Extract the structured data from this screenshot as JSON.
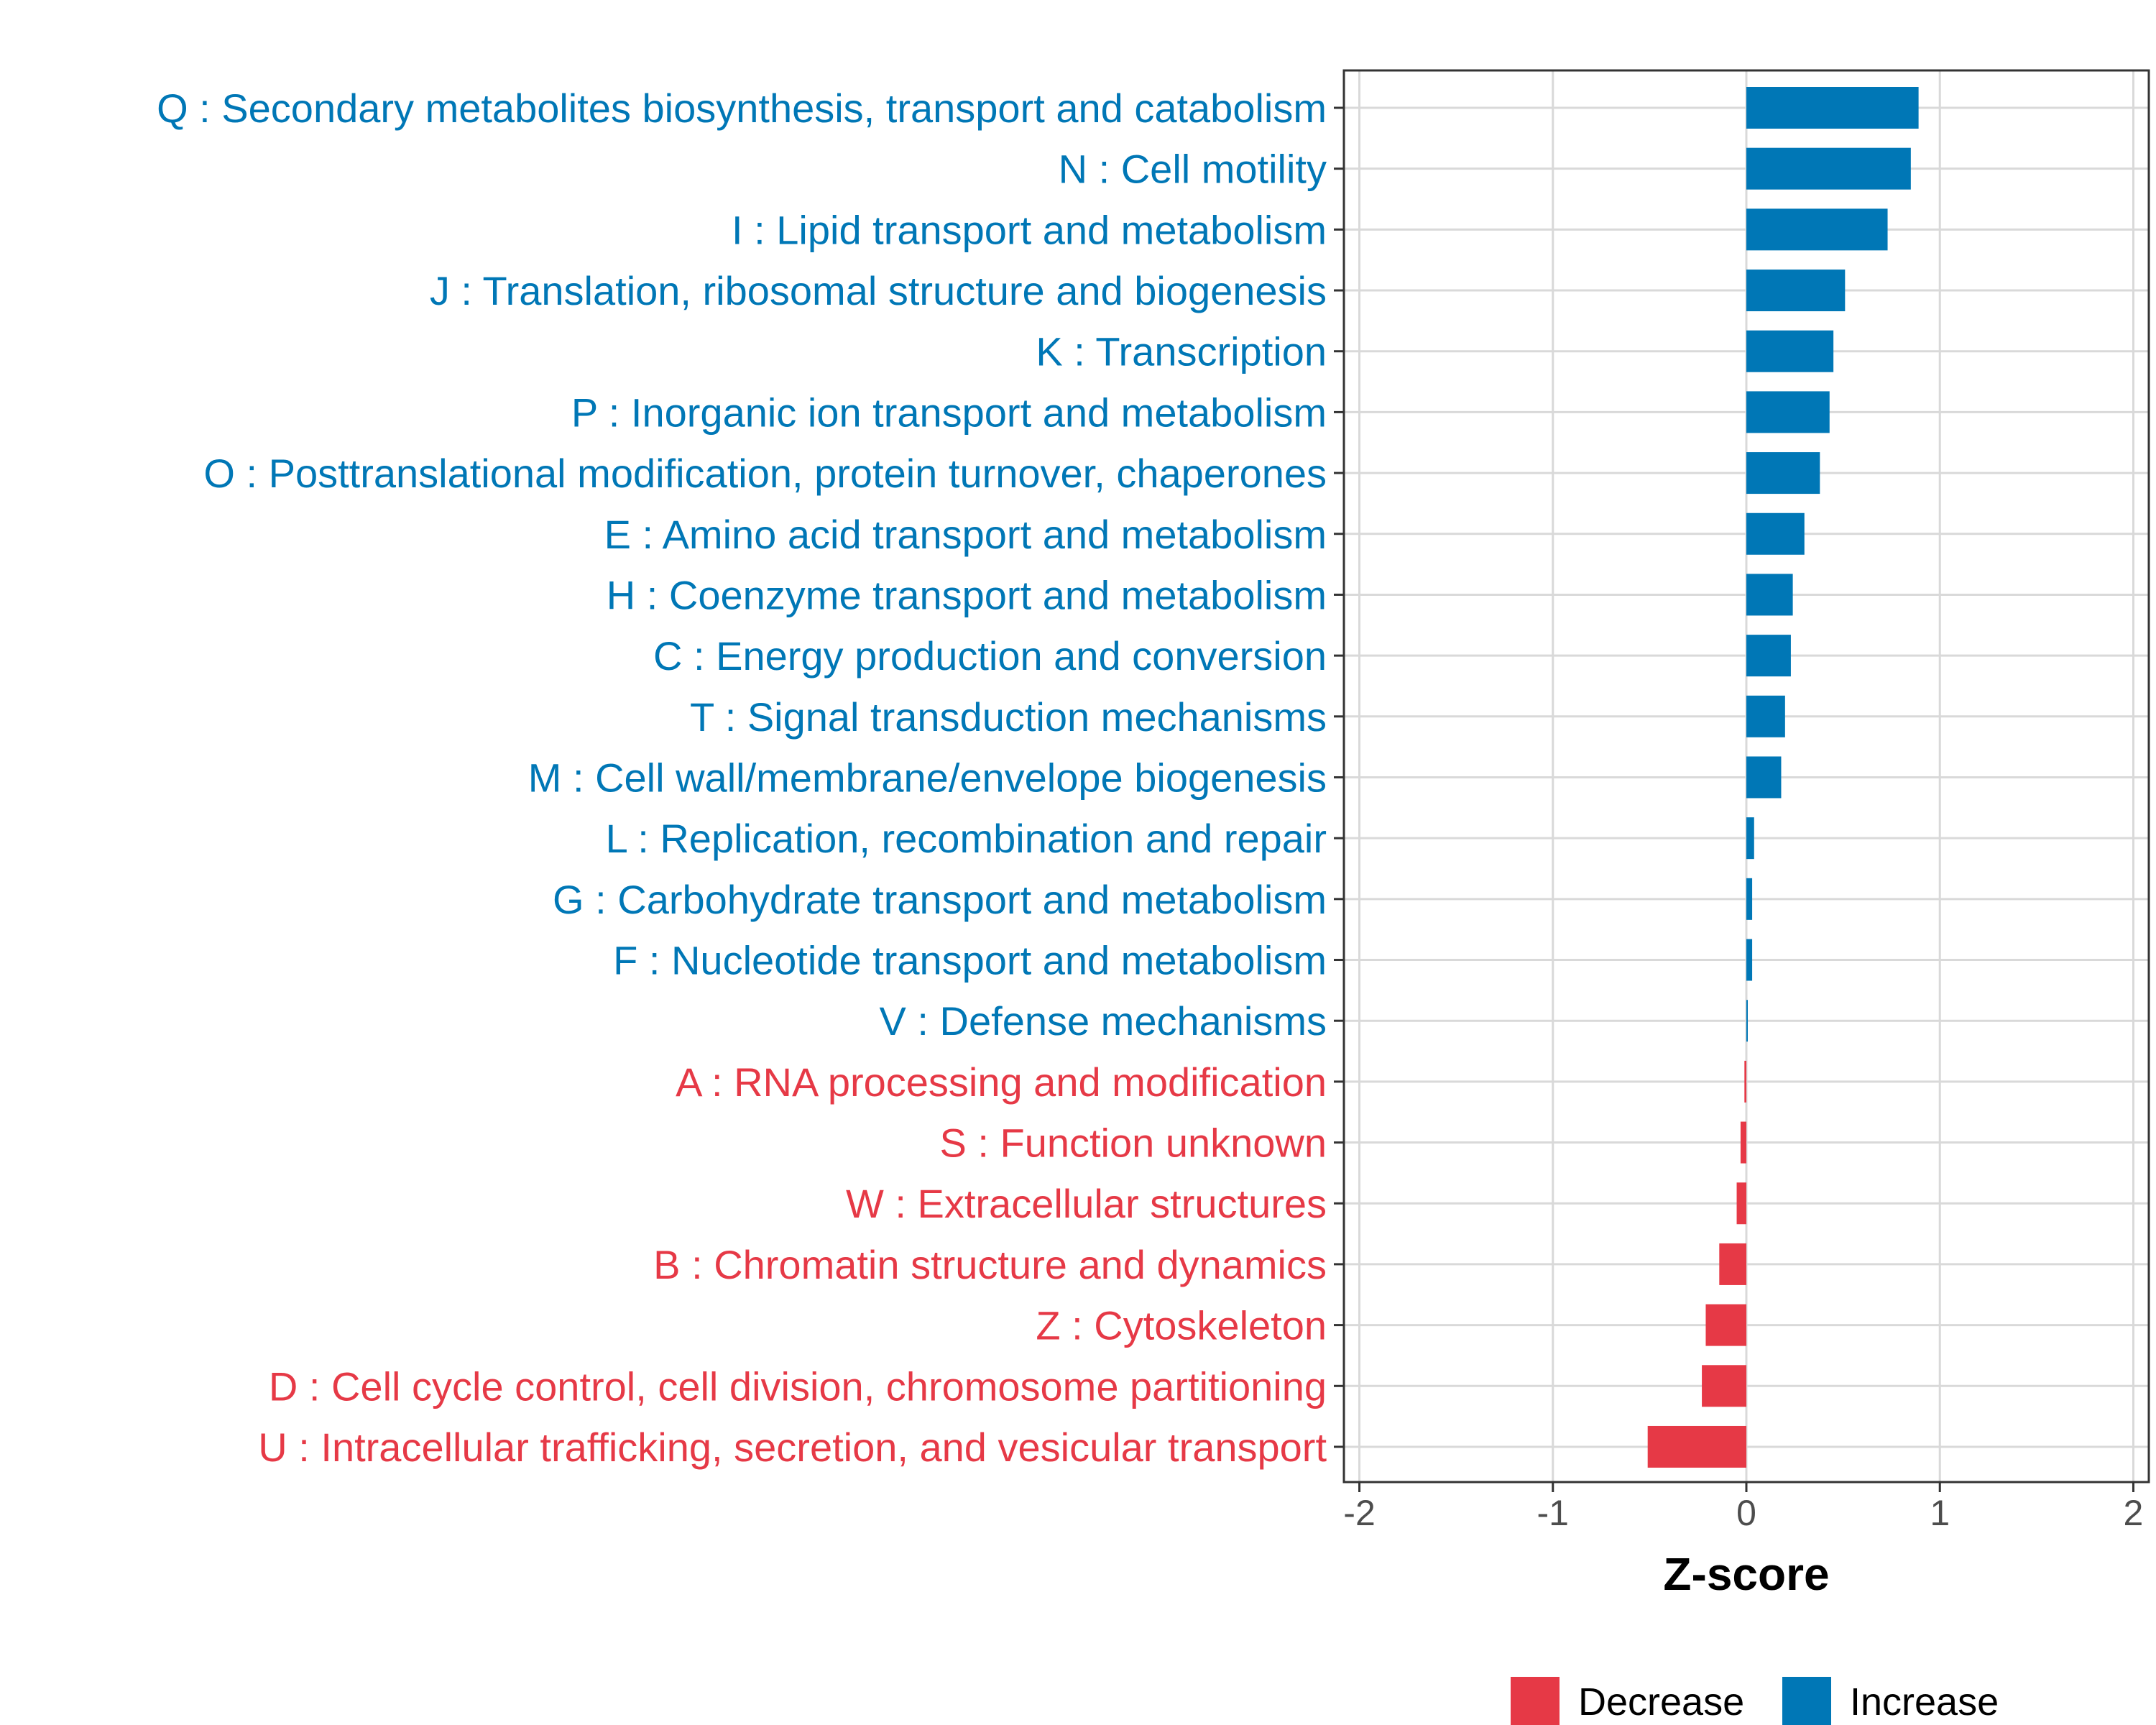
{
  "chart_data": {
    "type": "bar",
    "orientation": "horizontal",
    "title": "",
    "xlabel": "Z-score",
    "ylabel": "",
    "xlim": [
      -2.08,
      2.08
    ],
    "xticks": [
      -2,
      -1,
      0,
      1,
      2
    ],
    "xtick_labels": [
      "-2",
      "-1",
      "0",
      "1",
      "2"
    ],
    "grid": true,
    "legend_position": "bottom",
    "categories": [
      "Q : Secondary metabolites biosynthesis, transport and catabolism",
      "N : Cell motility",
      "I : Lipid transport and metabolism",
      "J : Translation, ribosomal structure and biogenesis",
      "K : Transcription",
      "P : Inorganic ion transport and metabolism",
      "O : Posttranslational modification, protein turnover, chaperones",
      "E : Amino acid transport and metabolism",
      "H : Coenzyme transport and metabolism",
      "C : Energy production and conversion",
      "T : Signal transduction mechanisms",
      "M : Cell wall/membrane/envelope biogenesis",
      "L : Replication, recombination and repair",
      "G : Carbohydrate transport and metabolism",
      "F : Nucleotide transport and metabolism",
      "V : Defense mechanisms",
      "A : RNA processing and modification",
      "S : Function unknown",
      "W : Extracellular structures",
      "B : Chromatin structure and dynamics",
      "Z : Cytoskeleton",
      "D : Cell cycle control, cell division, chromosome partitioning",
      "U : Intracellular trafficking, secretion, and vesicular transport"
    ],
    "values": [
      0.89,
      0.85,
      0.73,
      0.51,
      0.45,
      0.43,
      0.38,
      0.3,
      0.24,
      0.23,
      0.2,
      0.18,
      0.04,
      0.03,
      0.03,
      0.005,
      -0.01,
      -0.03,
      -0.05,
      -0.14,
      -0.21,
      -0.23,
      -0.51
    ],
    "groups": [
      "Increase",
      "Increase",
      "Increase",
      "Increase",
      "Increase",
      "Increase",
      "Increase",
      "Increase",
      "Increase",
      "Increase",
      "Increase",
      "Increase",
      "Increase",
      "Increase",
      "Increase",
      "Increase",
      "Decrease",
      "Decrease",
      "Decrease",
      "Decrease",
      "Decrease",
      "Decrease",
      "Decrease"
    ],
    "legend": [
      {
        "name": "Decrease",
        "color": "#e63946"
      },
      {
        "name": "Increase",
        "color": "#0077b6"
      }
    ]
  }
}
